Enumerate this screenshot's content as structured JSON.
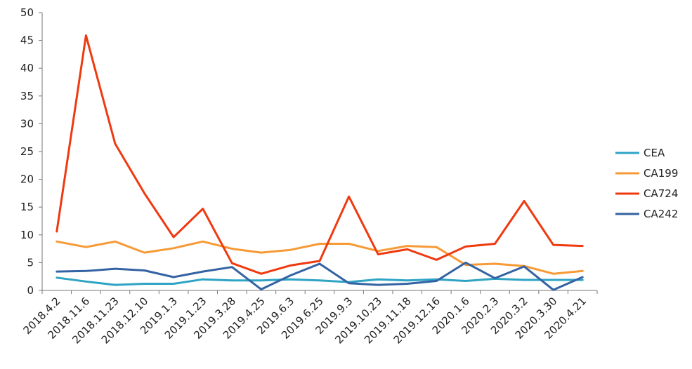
{
  "chart_data": {
    "type": "line",
    "title": "",
    "xlabel": "",
    "ylabel": "",
    "ylim": [
      0,
      50
    ],
    "yticks": [
      "0",
      "5",
      "10",
      "15",
      "20",
      "25",
      "30",
      "35",
      "40",
      "45",
      "50"
    ],
    "grid": false,
    "legend_position": "right",
    "categories": [
      "2018.4.2",
      "2018.11.6",
      "2018.11.23",
      "2018.12.10",
      "2019.1.3",
      "2019.1.23",
      "2019.3.28",
      "2019.4.25",
      "2019.6.3",
      "2019.6.25",
      "2019.9.3",
      "2019.10.23",
      "2019.11.18",
      "2019.12.16",
      "2020.1.6",
      "2020.2.3",
      "2020.3.2",
      "2020.3.30",
      "2020.4.21"
    ],
    "series": [
      {
        "name": "CEA",
        "color": "#2ea3c4",
        "values": [
          2.3,
          1.6,
          1.0,
          1.2,
          1.2,
          2.0,
          1.8,
          1.8,
          2.0,
          1.8,
          1.5,
          2.0,
          1.8,
          2.0,
          1.7,
          2.1,
          1.9,
          1.9,
          1.9
        ]
      },
      {
        "name": "CA199",
        "color": "#f79a36",
        "values": [
          8.8,
          7.8,
          8.8,
          6.8,
          7.6,
          8.8,
          7.5,
          6.8,
          7.3,
          8.4,
          8.4,
          7.1,
          8.0,
          7.8,
          4.6,
          4.8,
          4.4,
          3.0,
          3.5
        ]
      },
      {
        "name": "CA724",
        "color": "#ef3a10",
        "values": [
          10.6,
          45.9,
          26.4,
          17.5,
          9.6,
          14.7,
          4.9,
          3.0,
          4.5,
          5.3,
          16.9,
          6.5,
          7.4,
          5.5,
          7.9,
          8.4,
          16.1,
          8.2,
          8.0
        ]
      },
      {
        "name": "CA242",
        "color": "#3463a3",
        "values": [
          3.4,
          3.5,
          3.9,
          3.6,
          2.4,
          3.4,
          4.2,
          0.2,
          2.7,
          4.8,
          1.3,
          1.0,
          1.2,
          1.7,
          5.0,
          2.2,
          4.3,
          0.1,
          2.4
        ]
      }
    ]
  }
}
